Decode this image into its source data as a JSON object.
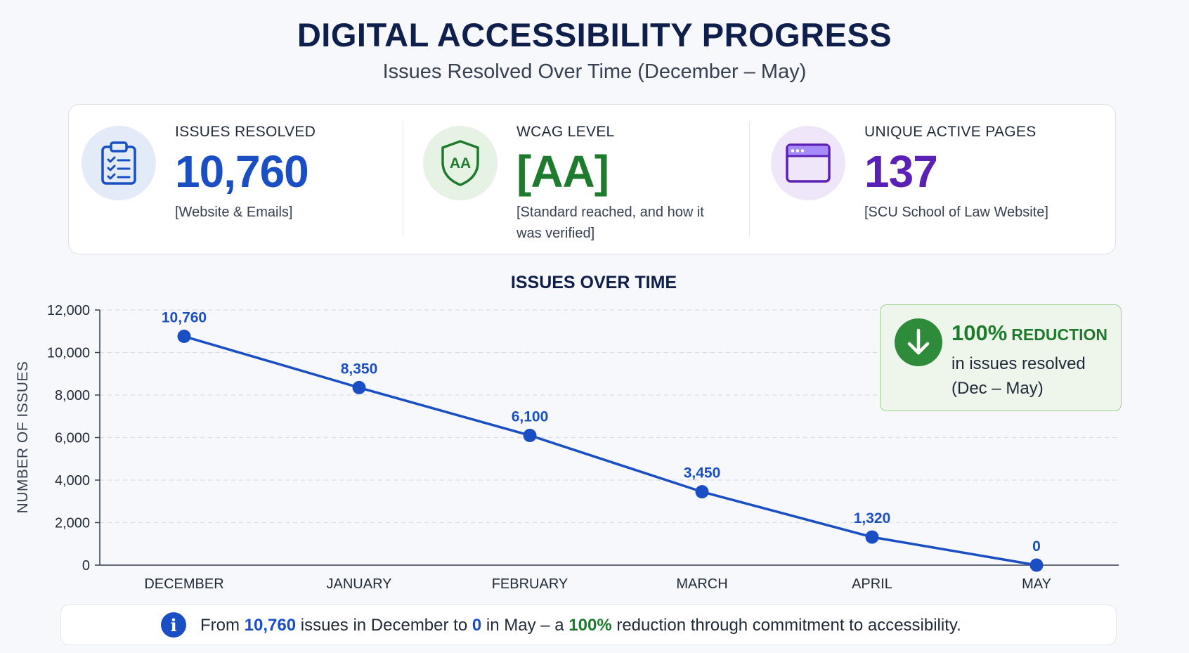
{
  "header": {
    "title": "DIGITAL ACCESSIBILITY PROGRESS",
    "subtitle": "Issues Resolved Over Time (December – May)"
  },
  "stats": [
    {
      "label": "ISSUES RESOLVED",
      "value": "10,760",
      "note": "[Website & Emails]",
      "icon": "clipboard-checklist-icon",
      "color": "#1a4fc4"
    },
    {
      "label": "WCAG LEVEL",
      "value": "[AA]",
      "note": "[Standard reached, and how it was verified]",
      "icon": "shield-aa-icon",
      "badge_text": "AA",
      "color": "#1e7a2c"
    },
    {
      "label": "UNIQUE ACTIVE PAGES",
      "value": "137",
      "note": "[SCU School of Law Website]",
      "icon": "browser-window-icon",
      "color": "#5b21b6"
    }
  ],
  "chart_data": {
    "type": "line",
    "title": "ISSUES OVER TIME",
    "xlabel": "",
    "ylabel": "NUMBER OF ISSUES",
    "categories": [
      "DECEMBER",
      "JANUARY",
      "FEBRUARY",
      "MARCH",
      "APRIL",
      "MAY"
    ],
    "values": [
      10760,
      8350,
      6100,
      3450,
      1320,
      0
    ],
    "data_labels": [
      "10,760",
      "8,350",
      "6,100",
      "3,450",
      "1,320",
      "0"
    ],
    "ylim": [
      0,
      12000
    ],
    "yticks": [
      0,
      2000,
      4000,
      6000,
      8000,
      10000,
      12000
    ],
    "ytick_labels": [
      "0",
      "2,000",
      "4,000",
      "6,000",
      "8,000",
      "10,000",
      "12,000"
    ],
    "grid": true,
    "line_color": "#1a4fc4"
  },
  "callout": {
    "percent": "100%",
    "word": "REDUCTION",
    "line1": "in issues resolved",
    "line2": "(Dec – May)",
    "icon": "arrow-down-icon"
  },
  "footer": {
    "icon": "info-icon",
    "t1": "From ",
    "v1": "10,760",
    "t2": " issues in December to ",
    "v2": "0",
    "t3": " in May – a ",
    "v3": "100%",
    "t4": " reduction through commitment to accessibility."
  }
}
